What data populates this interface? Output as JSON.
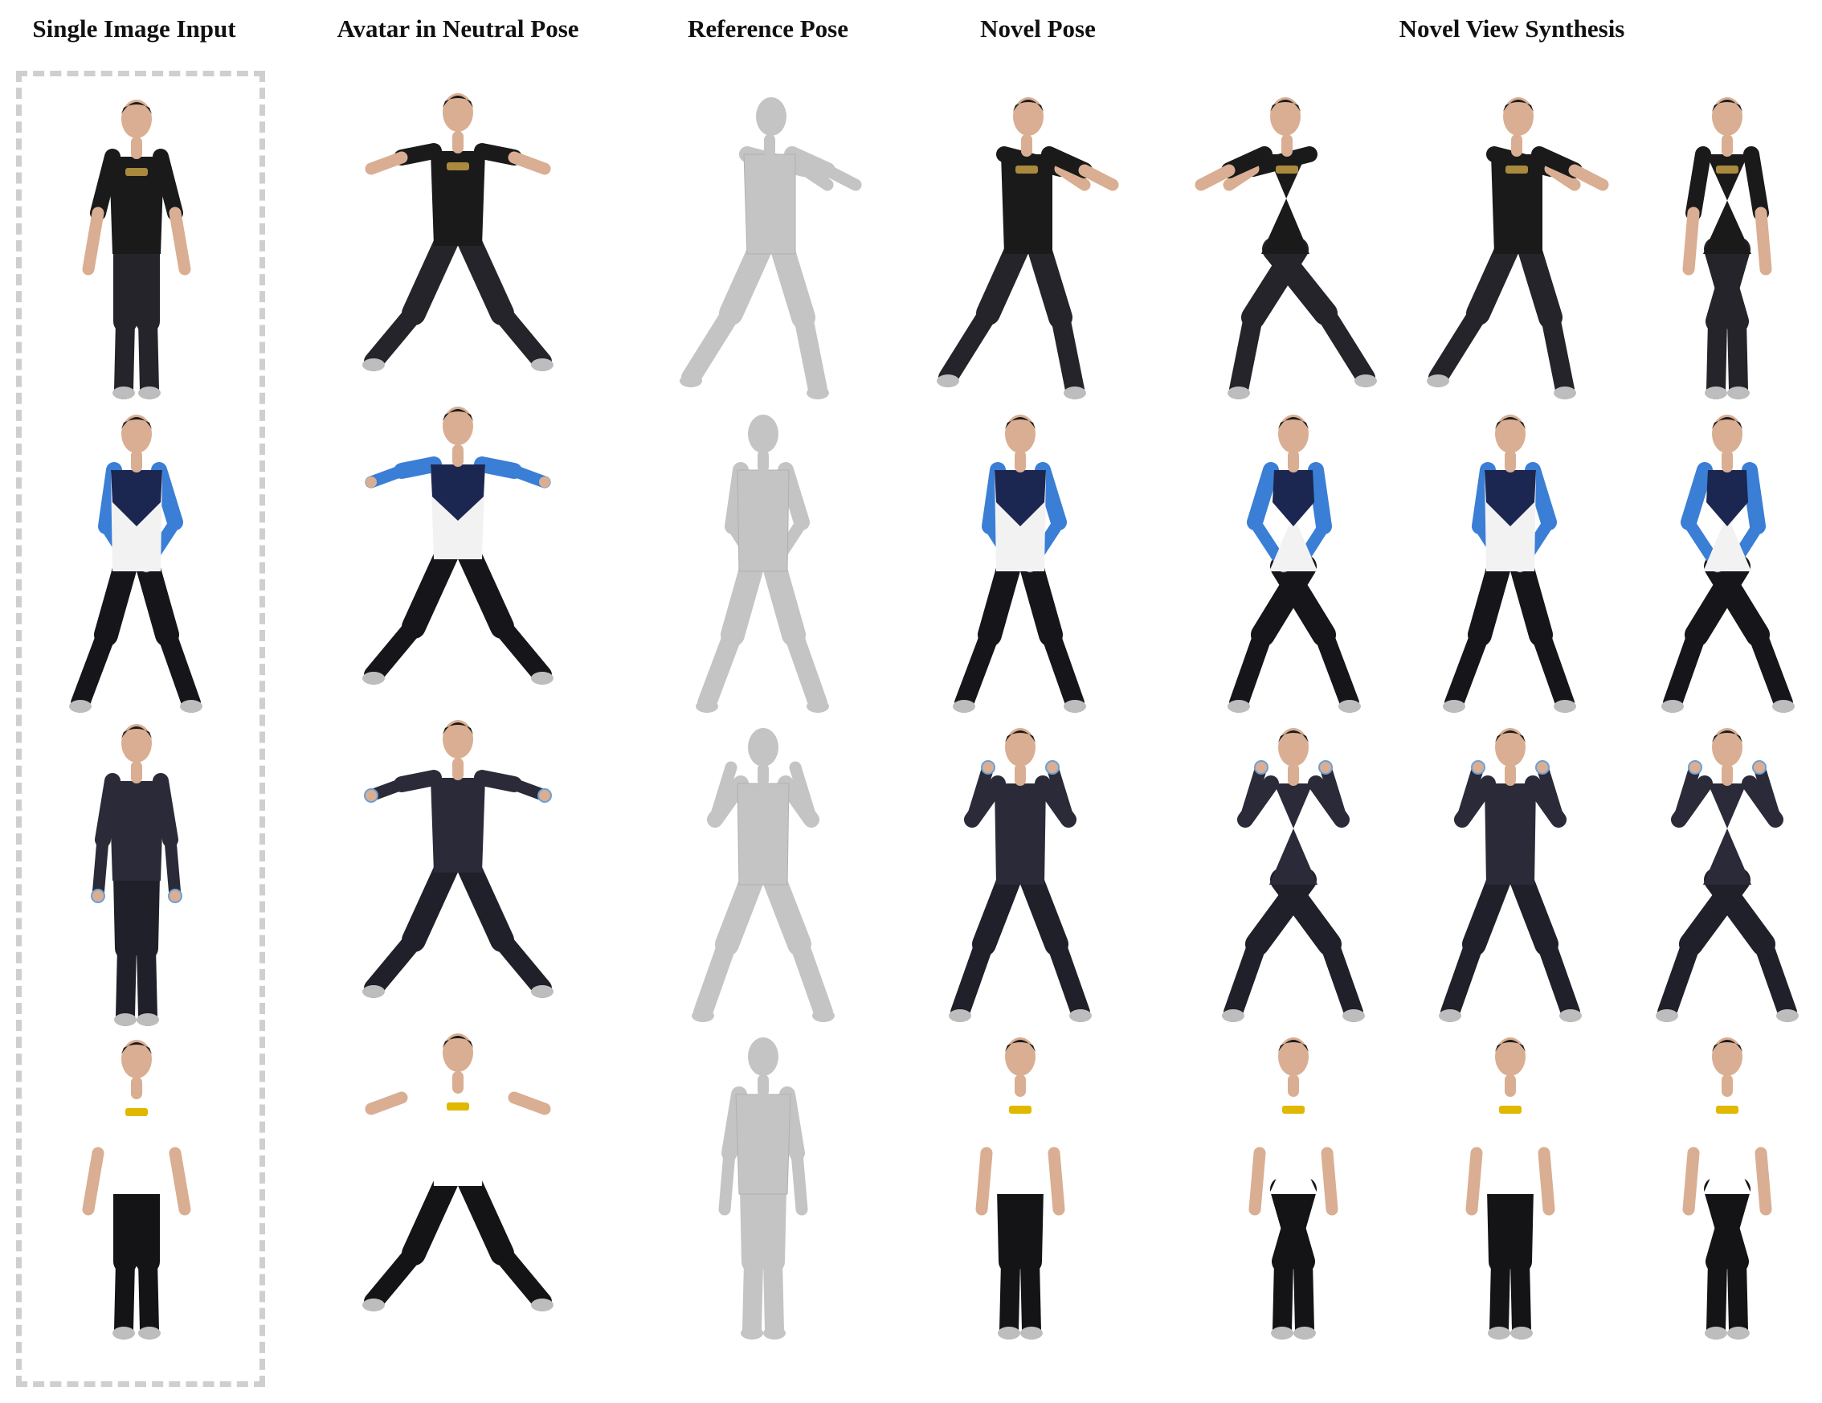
{
  "headers": {
    "single_image_input": "Single Image Input",
    "avatar_neutral_pose": "Avatar in Neutral Pose",
    "reference_pose": "Reference Pose",
    "novel_pose": "Novel Pose",
    "novel_view_synthesis": "Novel View Synthesis"
  },
  "colors": {
    "skin": "#d9ae92",
    "hair": "#1c1c1c",
    "mesh": "#c4c4c4",
    "sock": "#bdbdbd",
    "row1_shirt": "#1a1a1a",
    "row1_pants": "#24242a",
    "row1_logo": "#a8893e",
    "row2_shirt": "#f2f2f2",
    "row2_yoke": "#1b2750",
    "row2_sleeve": "#3a7ed6",
    "row2_pants": "#16161a",
    "row3_shirt": "#2a2a38",
    "row3_pants": "#20202a",
    "row3_cuff": "#6aa0d8",
    "row4_shirt": "#ffffff",
    "row4_pants": "#141416",
    "row4_logo": "#e0b800"
  }
}
